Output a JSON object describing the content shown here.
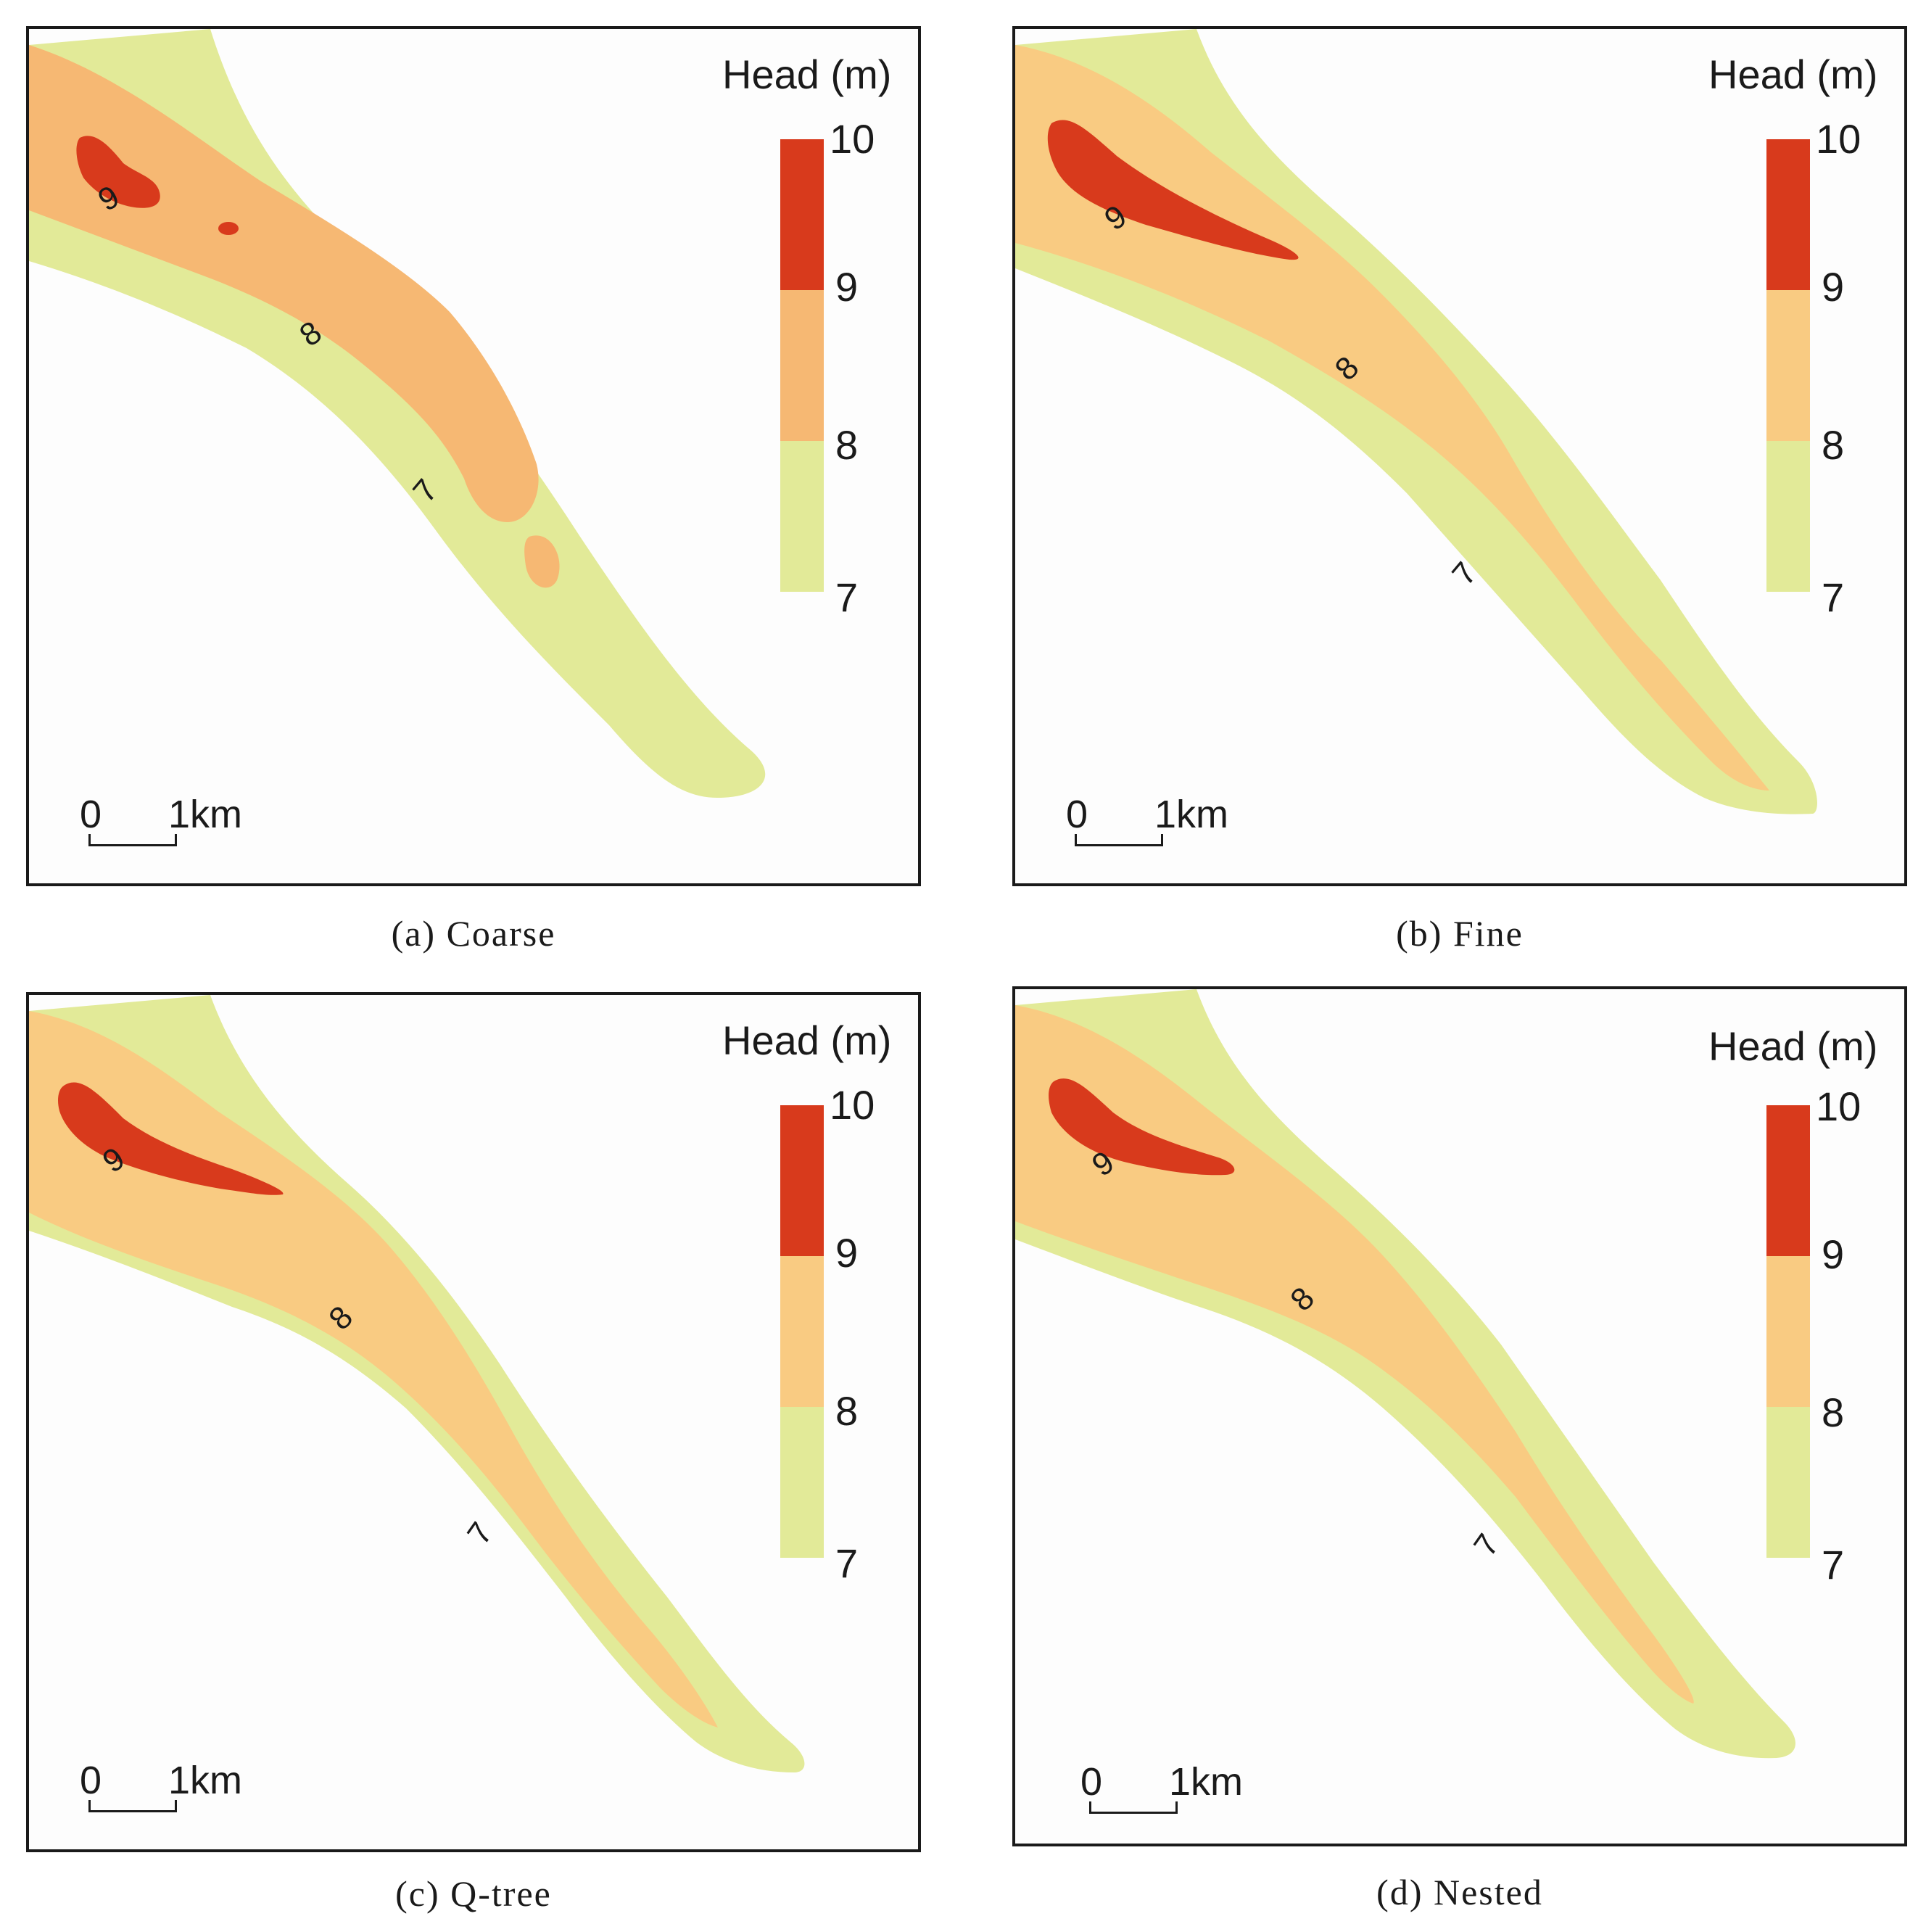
{
  "figure": {
    "panels": [
      {
        "id": "a",
        "caption": "(a) Coarse",
        "legend": {
          "title": "Head (m)",
          "ticks": [
            "10",
            "9",
            "8",
            "7"
          ],
          "classes": [
            {
              "range": "9-10",
              "color": "#d83a1c"
            },
            {
              "range": "8-9",
              "color": "#f6b873"
            },
            {
              "range": "7-8",
              "color": "#e2ea98"
            }
          ]
        },
        "contour_labels": [
          "9",
          "8",
          "7"
        ],
        "scalebar": {
          "start": "0",
          "end": "1km"
        }
      },
      {
        "id": "b",
        "caption": "(b) Fine",
        "legend": {
          "title": "Head (m)",
          "ticks": [
            "10",
            "9",
            "8",
            "7"
          ],
          "classes": [
            {
              "range": "9-10",
              "color": "#d83a1c"
            },
            {
              "range": "8-9",
              "color": "#f9cb82"
            },
            {
              "range": "7-8",
              "color": "#e2ea98"
            }
          ]
        },
        "contour_labels": [
          "9",
          "8",
          "7"
        ],
        "scalebar": {
          "start": "0",
          "end": "1km"
        }
      },
      {
        "id": "c",
        "caption": "(c) Q-tree",
        "legend": {
          "title": "Head (m)",
          "ticks": [
            "10",
            "9",
            "8",
            "7"
          ],
          "classes": [
            {
              "range": "9-10",
              "color": "#d83a1c"
            },
            {
              "range": "8-9",
              "color": "#f9cb82"
            },
            {
              "range": "7-8",
              "color": "#e2ea98"
            }
          ]
        },
        "contour_labels": [
          "9",
          "8",
          "7"
        ],
        "scalebar": {
          "start": "0",
          "end": "1km"
        }
      },
      {
        "id": "d",
        "caption": "(d) Nested",
        "legend": {
          "title": "Head (m)",
          "ticks": [
            "10",
            "9",
            "8",
            "7"
          ],
          "classes": [
            {
              "range": "9-10",
              "color": "#d83a1c"
            },
            {
              "range": "8-9",
              "color": "#f9cb82"
            },
            {
              "range": "7-8",
              "color": "#e2ea98"
            }
          ]
        },
        "contour_labels": [
          "9",
          "8",
          "7"
        ],
        "scalebar": {
          "start": "0",
          "end": "1km"
        }
      }
    ]
  }
}
